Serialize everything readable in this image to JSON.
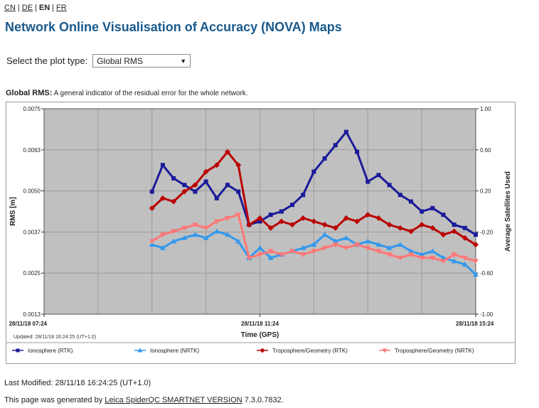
{
  "languages": [
    {
      "label": "CN",
      "current": false
    },
    {
      "label": "DE",
      "current": false
    },
    {
      "label": "EN",
      "current": true
    },
    {
      "label": "FR",
      "current": false
    }
  ],
  "page_title": "Network Online Visualisation of Accuracy (NOVA) Maps",
  "plot_type": {
    "label": "Select the plot type:",
    "selected": "Global RMS"
  },
  "caption": {
    "bold": "Global RMS:",
    "text": "A general indicator of the residual error for the whole network."
  },
  "updated_text": "Updated: 28/11/18 16:24:25 (UT+1.0)",
  "footer": {
    "last_modified": "Last Modified: 28/11/18 16:24:25 (UT+1.0)",
    "generated_prefix": "This page was generated by ",
    "generated_link": "Leica SpiderQC SMARTNET VERSION",
    "generated_suffix": " 7.3.0.7832."
  },
  "colors": {
    "plot_bg": "#c0c0c0",
    "ionosphere_rtk": "#1a1a9a",
    "ionosphere_nrtk": "#3399ee",
    "troposphere_rtk": "#bb0000",
    "troposphere_nrtk": "#ff7777"
  },
  "chart_data": {
    "type": "line",
    "xlabel": "Time (GPS)",
    "ylabel": "RMS [m]",
    "y2label": "Average Satellites Used",
    "x_ticks": [
      "28/11/18 07:24",
      "28/11/18 11:24",
      "28/11/18 15:24"
    ],
    "y_ticks": [
      "0.0013",
      "0.0025",
      "0.0037",
      "0.0050",
      "0.0063",
      "0.0075"
    ],
    "y2_ticks": [
      "-1.00",
      "-0.60",
      "-0.20",
      "0.20",
      "0.60",
      "1.00"
    ],
    "ylim": [
      0.0013,
      0.0075
    ],
    "y2lim": [
      -1.0,
      1.0
    ],
    "xlim_hours": [
      7.4,
      15.4
    ],
    "grid": true,
    "legend_position": "bottom",
    "series": [
      {
        "name": "Ionosphere (RTK)",
        "marker": "square",
        "color": "#1a1a9a",
        "x": [
          9.4,
          9.6,
          9.8,
          10.0,
          10.2,
          10.4,
          10.6,
          10.8,
          11.0,
          11.2,
          11.4,
          11.6,
          11.8,
          12.0,
          12.2,
          12.4,
          12.6,
          12.8,
          13.0,
          13.2,
          13.4,
          13.6,
          13.8,
          14.0,
          14.2,
          14.4,
          14.6,
          14.8,
          15.0,
          15.2,
          15.4
        ],
        "values": [
          0.005,
          0.0058,
          0.0054,
          0.0052,
          0.005,
          0.0053,
          0.0048,
          0.0052,
          0.005,
          0.004,
          0.0041,
          0.0043,
          0.0044,
          0.0046,
          0.0049,
          0.0056,
          0.006,
          0.0064,
          0.0068,
          0.0062,
          0.0053,
          0.0055,
          0.0052,
          0.0049,
          0.0047,
          0.0044,
          0.0045,
          0.0043,
          0.004,
          0.0039,
          0.0037
        ]
      },
      {
        "name": "Ionosphere (NRTK)",
        "marker": "triangle-up",
        "color": "#3399ee",
        "x": [
          9.4,
          9.6,
          9.8,
          10.0,
          10.2,
          10.4,
          10.6,
          10.8,
          11.0,
          11.2,
          11.4,
          11.6,
          11.8,
          12.0,
          12.2,
          12.4,
          12.6,
          12.8,
          13.0,
          13.2,
          13.4,
          13.6,
          13.8,
          14.0,
          14.2,
          14.4,
          14.6,
          14.8,
          15.0,
          15.2,
          15.4
        ],
        "values": [
          0.0034,
          0.0033,
          0.0035,
          0.0036,
          0.0037,
          0.0036,
          0.0038,
          0.0037,
          0.0035,
          0.003,
          0.0033,
          0.003,
          0.0031,
          0.0032,
          0.0033,
          0.0034,
          0.0037,
          0.0035,
          0.0036,
          0.0034,
          0.0035,
          0.0034,
          0.0033,
          0.0034,
          0.0032,
          0.0031,
          0.0032,
          0.003,
          0.0029,
          0.0028,
          0.0025
        ]
      },
      {
        "name": "Troposphere/Geometry (RTK)",
        "marker": "diamond",
        "color": "#bb0000",
        "x": [
          9.4,
          9.6,
          9.8,
          10.0,
          10.2,
          10.4,
          10.6,
          10.8,
          11.0,
          11.2,
          11.4,
          11.6,
          11.8,
          12.0,
          12.2,
          12.4,
          12.6,
          12.8,
          13.0,
          13.2,
          13.4,
          13.6,
          13.8,
          14.0,
          14.2,
          14.4,
          14.6,
          14.8,
          15.0,
          15.2,
          15.4
        ],
        "values": [
          0.0045,
          0.0048,
          0.0047,
          0.005,
          0.0052,
          0.0056,
          0.0058,
          0.0062,
          0.0058,
          0.004,
          0.0042,
          0.0039,
          0.0041,
          0.004,
          0.0042,
          0.0041,
          0.004,
          0.0039,
          0.0042,
          0.0041,
          0.0043,
          0.0042,
          0.004,
          0.0039,
          0.0038,
          0.004,
          0.0039,
          0.0037,
          0.0038,
          0.0036,
          0.0034
        ]
      },
      {
        "name": "Troposphere/Geometry (NRTK)",
        "marker": "triangle-down",
        "color": "#ff7777",
        "x": [
          9.4,
          9.6,
          9.8,
          10.0,
          10.2,
          10.4,
          10.6,
          10.8,
          11.0,
          11.2,
          11.4,
          11.6,
          11.8,
          12.0,
          12.2,
          12.4,
          12.6,
          12.8,
          13.0,
          13.2,
          13.4,
          13.6,
          13.8,
          14.0,
          14.2,
          14.4,
          14.6,
          14.8,
          15.0,
          15.2,
          15.4
        ],
        "values": [
          0.0035,
          0.0037,
          0.0038,
          0.0039,
          0.004,
          0.0039,
          0.0041,
          0.0042,
          0.0043,
          0.003,
          0.0031,
          0.0032,
          0.0031,
          0.0032,
          0.0031,
          0.0032,
          0.0033,
          0.0034,
          0.0033,
          0.0034,
          0.0033,
          0.0032,
          0.0031,
          0.003,
          0.0031,
          0.003,
          0.003,
          0.0029,
          0.0031,
          0.003,
          0.0029
        ]
      }
    ]
  }
}
